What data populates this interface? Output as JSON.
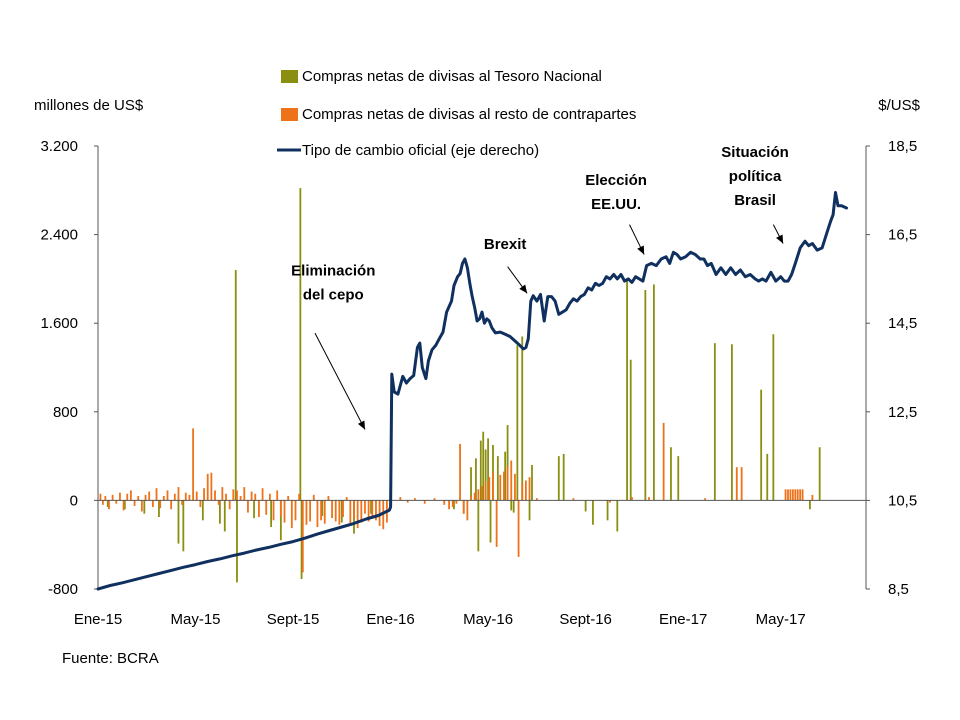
{
  "chart_data": {
    "type": "bar+line",
    "colors": {
      "treasury": "#8a8f0f",
      "others": "#ee7219",
      "fx": "#10305f",
      "axis": "#555555"
    },
    "y_left": {
      "label": "millones de US$",
      "range": [
        -800,
        3200
      ],
      "ticks": [
        {
          "v": -800,
          "label": "-800"
        },
        {
          "v": 0,
          "label": "0"
        },
        {
          "v": 800,
          "label": "800"
        },
        {
          "v": 1600,
          "label": "1.600"
        },
        {
          "v": 2400,
          "label": "2.400"
        },
        {
          "v": 3200,
          "label": "3.200"
        }
      ]
    },
    "y_right": {
      "label": "$/US$",
      "range": [
        8.5,
        18.5
      ],
      "ticks": [
        {
          "v": 8.5,
          "label": "8,5"
        },
        {
          "v": 10.5,
          "label": "10,5"
        },
        {
          "v": 12.5,
          "label": "12,5"
        },
        {
          "v": 14.5,
          "label": "14,5"
        },
        {
          "v": 16.5,
          "label": "16,5"
        },
        {
          "v": 18.5,
          "label": "18,5"
        }
      ]
    },
    "x_axis": {
      "range": [
        0,
        31.5
      ],
      "ticks": [
        {
          "t": 0,
          "label": "Ene-15"
        },
        {
          "t": 4,
          "label": "May-15"
        },
        {
          "t": 8,
          "label": "Sept-15"
        },
        {
          "t": 12,
          "label": "Ene-16"
        },
        {
          "t": 16,
          "label": "May-16"
        },
        {
          "t": 20,
          "label": "Sept-16"
        },
        {
          "t": 24,
          "label": "Ene-17"
        },
        {
          "t": 28,
          "label": "May-17"
        }
      ]
    },
    "legend": [
      {
        "key": "treasury",
        "label": "Compras netas de divisas al Tesoro Nacional",
        "kind": "bar"
      },
      {
        "key": "others",
        "label": "Compras netas de divisas al resto de contrapartes",
        "kind": "bar"
      },
      {
        "key": "fx",
        "label": "Tipo de cambio oficial (eje derecho)",
        "kind": "line"
      }
    ],
    "series_treasury": [
      [
        0.4,
        -60
      ],
      [
        1.1,
        -80
      ],
      [
        1.9,
        -120
      ],
      [
        2.5,
        -150
      ],
      [
        3.3,
        -390
      ],
      [
        3.5,
        -460
      ],
      [
        4.3,
        -180
      ],
      [
        5.0,
        -210
      ],
      [
        5.2,
        -280
      ],
      [
        5.65,
        2080
      ],
      [
        5.7,
        -740
      ],
      [
        6.4,
        -160
      ],
      [
        7.1,
        -240
      ],
      [
        7.5,
        -360
      ],
      [
        8.3,
        2820
      ],
      [
        8.35,
        -710
      ],
      [
        9.2,
        -140
      ],
      [
        10.0,
        -200
      ],
      [
        10.5,
        -300
      ],
      [
        11.2,
        -120
      ],
      [
        14.6,
        -80
      ],
      [
        15.0,
        -120
      ],
      [
        15.3,
        300
      ],
      [
        15.5,
        380
      ],
      [
        15.6,
        -460
      ],
      [
        15.7,
        540
      ],
      [
        15.8,
        620
      ],
      [
        15.9,
        460
      ],
      [
        16.0,
        560
      ],
      [
        16.1,
        -380
      ],
      [
        16.2,
        500
      ],
      [
        16.4,
        400
      ],
      [
        16.7,
        440
      ],
      [
        16.8,
        680
      ],
      [
        16.95,
        -90
      ],
      [
        17.05,
        -110
      ],
      [
        17.2,
        1400
      ],
      [
        17.4,
        1480
      ],
      [
        17.7,
        -180
      ],
      [
        17.8,
        320
      ],
      [
        18.9,
        400
      ],
      [
        19.1,
        420
      ],
      [
        20.0,
        -100
      ],
      [
        20.3,
        -220
      ],
      [
        20.9,
        -180
      ],
      [
        21.3,
        -280
      ],
      [
        21.7,
        2000
      ],
      [
        21.85,
        1270
      ],
      [
        22.45,
        1900
      ],
      [
        22.8,
        1950
      ],
      [
        23.5,
        480
      ],
      [
        23.8,
        400
      ],
      [
        25.3,
        1420
      ],
      [
        26.0,
        1410
      ],
      [
        27.2,
        1000
      ],
      [
        27.45,
        420
      ],
      [
        27.7,
        1500
      ],
      [
        29.6,
        480
      ],
      [
        29.2,
        -80
      ]
    ],
    "series_others": [
      [
        0.1,
        60
      ],
      [
        0.2,
        -40
      ],
      [
        0.3,
        40
      ],
      [
        0.45,
        -80
      ],
      [
        0.6,
        50
      ],
      [
        0.75,
        -30
      ],
      [
        0.9,
        70
      ],
      [
        1.05,
        -90
      ],
      [
        1.2,
        60
      ],
      [
        1.35,
        90
      ],
      [
        1.5,
        -50
      ],
      [
        1.65,
        40
      ],
      [
        1.8,
        -100
      ],
      [
        1.95,
        50
      ],
      [
        2.1,
        80
      ],
      [
        2.25,
        -60
      ],
      [
        2.4,
        110
      ],
      [
        2.55,
        -70
      ],
      [
        2.7,
        40
      ],
      [
        2.85,
        90
      ],
      [
        3.0,
        -80
      ],
      [
        3.15,
        60
      ],
      [
        3.3,
        120
      ],
      [
        3.45,
        -40
      ],
      [
        3.6,
        70
      ],
      [
        3.75,
        50
      ],
      [
        3.9,
        650
      ],
      [
        4.05,
        80
      ],
      [
        4.2,
        -60
      ],
      [
        4.35,
        110
      ],
      [
        4.5,
        240
      ],
      [
        4.65,
        250
      ],
      [
        4.8,
        90
      ],
      [
        4.95,
        -40
      ],
      [
        5.1,
        120
      ],
      [
        5.25,
        60
      ],
      [
        5.4,
        -80
      ],
      [
        5.55,
        100
      ],
      [
        5.7,
        90
      ],
      [
        5.85,
        40
      ],
      [
        6.0,
        120
      ],
      [
        6.15,
        -110
      ],
      [
        6.3,
        80
      ],
      [
        6.45,
        60
      ],
      [
        6.6,
        -150
      ],
      [
        6.75,
        110
      ],
      [
        6.9,
        -130
      ],
      [
        7.05,
        60
      ],
      [
        7.2,
        -180
      ],
      [
        7.35,
        90
      ],
      [
        7.5,
        -150
      ],
      [
        7.65,
        -200
      ],
      [
        7.8,
        40
      ],
      [
        7.95,
        -250
      ],
      [
        8.1,
        -180
      ],
      [
        8.25,
        60
      ],
      [
        8.4,
        -650
      ],
      [
        8.55,
        -220
      ],
      [
        8.7,
        -190
      ],
      [
        8.85,
        50
      ],
      [
        9.0,
        -240
      ],
      [
        9.15,
        -180
      ],
      [
        9.3,
        -210
      ],
      [
        9.45,
        40
      ],
      [
        9.6,
        -160
      ],
      [
        9.75,
        -190
      ],
      [
        9.9,
        -220
      ],
      [
        10.05,
        -150
      ],
      [
        10.2,
        30
      ],
      [
        10.35,
        -230
      ],
      [
        10.5,
        -170
      ],
      [
        10.65,
        -250
      ],
      [
        10.8,
        -200
      ],
      [
        10.95,
        -120
      ],
      [
        11.1,
        -190
      ],
      [
        11.25,
        -160
      ],
      [
        11.4,
        -180
      ],
      [
        11.55,
        -230
      ],
      [
        11.7,
        -260
      ],
      [
        11.85,
        -200
      ],
      [
        12.4,
        30
      ],
      [
        12.7,
        -20
      ],
      [
        13.0,
        20
      ],
      [
        13.4,
        -30
      ],
      [
        13.8,
        20
      ],
      [
        14.2,
        -40
      ],
      [
        14.4,
        -80
      ],
      [
        14.55,
        -60
      ],
      [
        14.7,
        -30
      ],
      [
        14.85,
        510
      ],
      [
        15.0,
        -120
      ],
      [
        15.15,
        -180
      ],
      [
        15.3,
        40
      ],
      [
        15.45,
        70
      ],
      [
        15.6,
        100
      ],
      [
        15.75,
        130
      ],
      [
        15.9,
        170
      ],
      [
        16.05,
        210
      ],
      [
        16.2,
        260
      ],
      [
        16.35,
        -420
      ],
      [
        16.5,
        230
      ],
      [
        16.65,
        260
      ],
      [
        16.8,
        310
      ],
      [
        16.95,
        360
      ],
      [
        17.1,
        240
      ],
      [
        17.25,
        -510
      ],
      [
        17.4,
        150
      ],
      [
        17.55,
        180
      ],
      [
        17.7,
        210
      ],
      [
        18.0,
        20
      ],
      [
        19.5,
        20
      ],
      [
        21.0,
        -20
      ],
      [
        21.9,
        30
      ],
      [
        22.6,
        30
      ],
      [
        23.2,
        700
      ],
      [
        24.9,
        20
      ],
      [
        26.2,
        300
      ],
      [
        26.4,
        300
      ],
      [
        28.2,
        100
      ],
      [
        28.3,
        100
      ],
      [
        28.4,
        100
      ],
      [
        28.5,
        100
      ],
      [
        28.6,
        100
      ],
      [
        28.7,
        100
      ],
      [
        28.8,
        100
      ],
      [
        28.9,
        100
      ],
      [
        29.3,
        50
      ]
    ],
    "series_fx": [
      [
        0.0,
        8.5
      ],
      [
        0.5,
        8.58
      ],
      [
        1.0,
        8.64
      ],
      [
        1.5,
        8.71
      ],
      [
        2.0,
        8.78
      ],
      [
        2.5,
        8.85
      ],
      [
        3.0,
        8.92
      ],
      [
        3.5,
        8.99
      ],
      [
        4.0,
        9.05
      ],
      [
        4.5,
        9.12
      ],
      [
        5.0,
        9.18
      ],
      [
        5.5,
        9.25
      ],
      [
        6.0,
        9.31
      ],
      [
        6.5,
        9.38
      ],
      [
        7.0,
        9.44
      ],
      [
        7.5,
        9.51
      ],
      [
        8.0,
        9.57
      ],
      [
        8.5,
        9.65
      ],
      [
        9.0,
        9.74
      ],
      [
        9.5,
        9.82
      ],
      [
        10.0,
        9.9
      ],
      [
        10.5,
        9.98
      ],
      [
        11.0,
        10.08
      ],
      [
        11.5,
        10.16
      ],
      [
        11.95,
        10.28
      ],
      [
        12.0,
        10.35
      ],
      [
        12.05,
        13.35
      ],
      [
        12.15,
        12.95
      ],
      [
        12.3,
        12.9
      ],
      [
        12.5,
        13.3
      ],
      [
        12.65,
        13.15
      ],
      [
        12.8,
        13.25
      ],
      [
        12.95,
        13.32
      ],
      [
        13.1,
        13.95
      ],
      [
        13.2,
        14.05
      ],
      [
        13.3,
        13.5
      ],
      [
        13.45,
        13.25
      ],
      [
        13.55,
        13.65
      ],
      [
        13.7,
        13.9
      ],
      [
        13.85,
        14.0
      ],
      [
        14.0,
        14.15
      ],
      [
        14.15,
        14.3
      ],
      [
        14.3,
        14.75
      ],
      [
        14.5,
        15.0
      ],
      [
        14.6,
        15.35
      ],
      [
        14.75,
        15.55
      ],
      [
        14.85,
        15.62
      ],
      [
        14.95,
        15.85
      ],
      [
        15.05,
        15.95
      ],
      [
        15.15,
        15.75
      ],
      [
        15.25,
        15.4
      ],
      [
        15.35,
        15.1
      ],
      [
        15.45,
        14.85
      ],
      [
        15.55,
        14.55
      ],
      [
        15.65,
        14.6
      ],
      [
        15.75,
        14.75
      ],
      [
        15.85,
        14.5
      ],
      [
        15.95,
        14.6
      ],
      [
        16.05,
        14.55
      ],
      [
        16.15,
        14.4
      ],
      [
        16.3,
        14.28
      ],
      [
        16.5,
        14.3
      ],
      [
        16.7,
        14.25
      ],
      [
        16.9,
        14.2
      ],
      [
        17.1,
        14.1
      ],
      [
        17.3,
        14.0
      ],
      [
        17.45,
        13.92
      ],
      [
        17.55,
        13.95
      ],
      [
        17.65,
        14.15
      ],
      [
        17.75,
        15.0
      ],
      [
        17.85,
        15.12
      ],
      [
        18.0,
        15.0
      ],
      [
        18.15,
        15.15
      ],
      [
        18.3,
        14.55
      ],
      [
        18.45,
        15.1
      ],
      [
        18.6,
        15.1
      ],
      [
        18.75,
        15.0
      ],
      [
        18.9,
        14.7
      ],
      [
        19.05,
        14.75
      ],
      [
        19.2,
        14.8
      ],
      [
        19.35,
        14.95
      ],
      [
        19.5,
        15.05
      ],
      [
        19.65,
        15.0
      ],
      [
        19.8,
        15.1
      ],
      [
        19.95,
        15.15
      ],
      [
        20.1,
        15.3
      ],
      [
        20.25,
        15.25
      ],
      [
        20.4,
        15.4
      ],
      [
        20.55,
        15.35
      ],
      [
        20.7,
        15.4
      ],
      [
        20.85,
        15.55
      ],
      [
        21.0,
        15.5
      ],
      [
        21.15,
        15.6
      ],
      [
        21.3,
        15.5
      ],
      [
        21.45,
        15.6
      ],
      [
        21.6,
        15.45
      ],
      [
        21.75,
        15.5
      ],
      [
        21.9,
        15.42
      ],
      [
        22.05,
        15.55
      ],
      [
        22.2,
        15.5
      ],
      [
        22.35,
        15.45
      ],
      [
        22.5,
        15.8
      ],
      [
        22.7,
        15.85
      ],
      [
        22.9,
        15.8
      ],
      [
        23.1,
        15.95
      ],
      [
        23.3,
        16.0
      ],
      [
        23.45,
        15.85
      ],
      [
        23.6,
        16.1
      ],
      [
        23.75,
        16.05
      ],
      [
        23.9,
        15.95
      ],
      [
        24.1,
        16.0
      ],
      [
        24.3,
        16.1
      ],
      [
        24.5,
        16.05
      ],
      [
        24.7,
        15.95
      ],
      [
        24.85,
        15.95
      ],
      [
        25.0,
        15.8
      ],
      [
        25.15,
        15.85
      ],
      [
        25.35,
        15.6
      ],
      [
        25.55,
        15.75
      ],
      [
        25.75,
        15.6
      ],
      [
        25.95,
        15.75
      ],
      [
        26.15,
        15.6
      ],
      [
        26.35,
        15.7
      ],
      [
        26.55,
        15.55
      ],
      [
        26.75,
        15.6
      ],
      [
        26.95,
        15.5
      ],
      [
        27.1,
        15.45
      ],
      [
        27.25,
        15.5
      ],
      [
        27.4,
        15.45
      ],
      [
        27.6,
        15.65
      ],
      [
        27.8,
        15.45
      ],
      [
        28.0,
        15.55
      ],
      [
        28.15,
        15.45
      ],
      [
        28.3,
        15.45
      ],
      [
        28.45,
        15.6
      ],
      [
        28.6,
        15.85
      ],
      [
        28.8,
        16.2
      ],
      [
        29.0,
        16.35
      ],
      [
        29.15,
        16.25
      ],
      [
        29.3,
        16.3
      ],
      [
        29.5,
        16.15
      ],
      [
        29.7,
        16.2
      ],
      [
        29.9,
        16.55
      ],
      [
        30.05,
        16.8
      ],
      [
        30.15,
        16.95
      ],
      [
        30.25,
        17.45
      ],
      [
        30.35,
        17.15
      ],
      [
        30.5,
        17.15
      ],
      [
        30.7,
        17.1
      ]
    ],
    "annotations": [
      {
        "key": "cepo",
        "lines": [
          "Eliminación",
          "del cepo"
        ],
        "tx": 9.65,
        "ty": 2030,
        "ax0": 8.9,
        "ay0": 1510,
        "ax1": 10.95,
        "ay1": 640
      },
      {
        "key": "brexit",
        "lines": [
          "Brexit"
        ],
        "tx": 16.7,
        "ty": 2270,
        "ax0": 16.8,
        "ay0": 2110,
        "ax1": 17.6,
        "ay1": 1870
      },
      {
        "key": "eeuu",
        "lines": [
          "Elección",
          "EE.UU."
        ],
        "tx": 21.25,
        "ty": 2850,
        "ax0": 21.8,
        "ay0": 2490,
        "ax1": 22.4,
        "ay1": 2220
      },
      {
        "key": "brasil",
        "lines": [
          "Situación",
          "política",
          "Brasil"
        ],
        "tx": 26.95,
        "ty": 3100,
        "ax0": 27.7,
        "ay0": 2490,
        "ax1": 28.1,
        "ay1": 2320
      }
    ],
    "source": "Fuente: BCRA"
  }
}
